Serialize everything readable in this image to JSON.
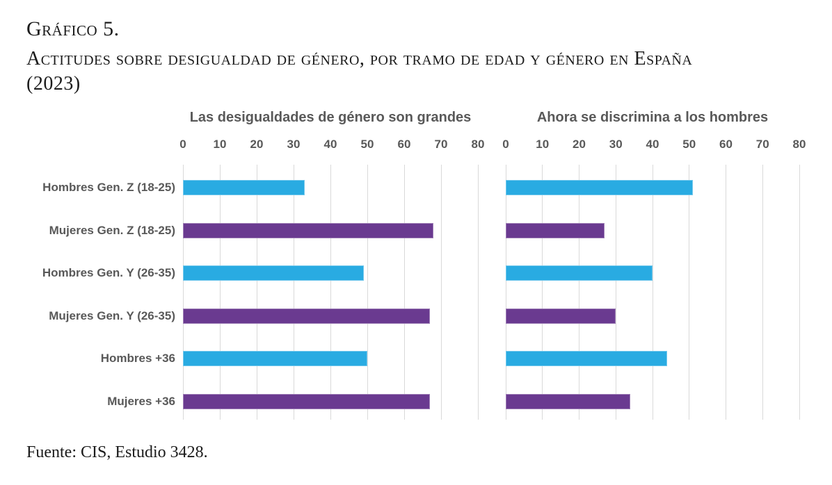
{
  "header": {
    "label": "Gráfico 5.",
    "title": "Actitudes sobre desigualdad de género, por tramo de edad y género en España",
    "year": "(2023)"
  },
  "footer": {
    "source": "Fuente: CIS, Estudio 3428."
  },
  "chart_data": {
    "type": "bar",
    "orientation": "horizontal",
    "categories": [
      "Hombres Gen. Z (18-25)",
      "Mujeres Gen. Z (18-25)",
      "Hombres Gen. Y (26-35)",
      "Mujeres Gen. Y (26-35)",
      "Hombres +36",
      "Mujeres +36"
    ],
    "panels": [
      {
        "title": "Las desigualdades de género son grandes",
        "values": [
          33,
          68,
          49,
          67,
          50,
          67
        ]
      },
      {
        "title": "Ahora se discrimina a los hombres",
        "values": [
          51,
          27,
          40,
          30,
          44,
          34
        ]
      }
    ],
    "xlim": [
      0,
      80
    ],
    "ticks": [
      0,
      10,
      20,
      30,
      40,
      50,
      60,
      70,
      80
    ],
    "grid": true,
    "legend": "none",
    "colors": {
      "hombres": "#29ABE2",
      "mujeres": "#6A3A90"
    },
    "row_color_keys": [
      "hombres",
      "mujeres",
      "hombres",
      "mujeres",
      "hombres",
      "mujeres"
    ]
  }
}
